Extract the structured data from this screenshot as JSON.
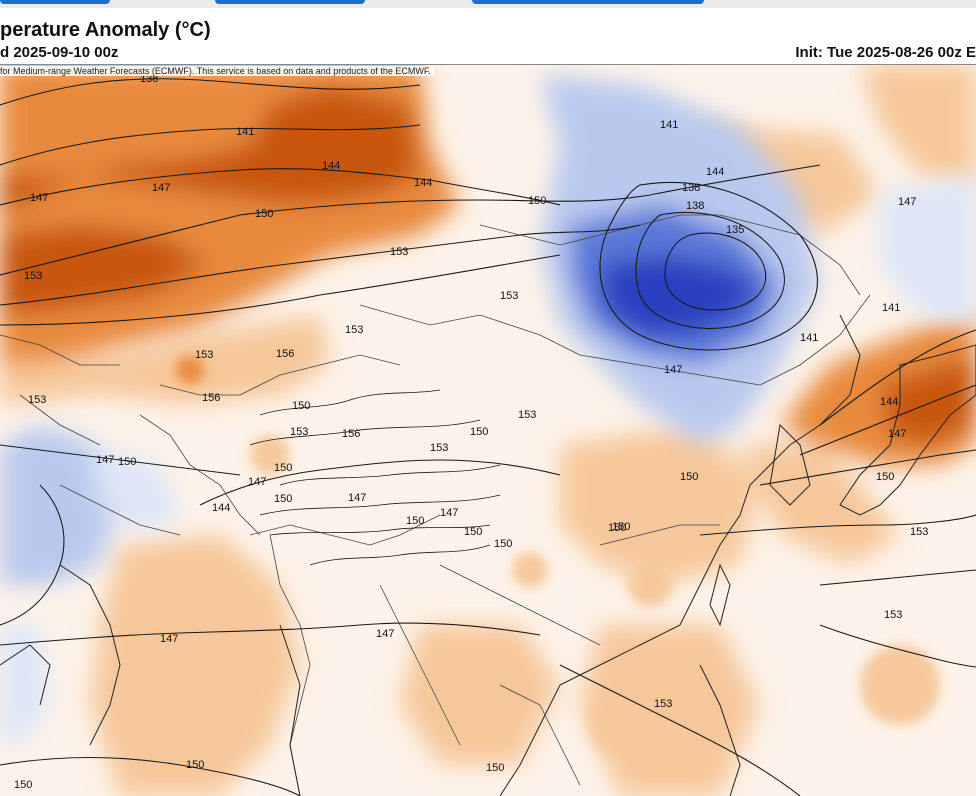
{
  "header": {
    "title": "perature Anomaly (°C)",
    "valid": "d 2025-09-10 00z",
    "init": "Init: Tue 2025-08-26 00z E",
    "credit": "for Medium-range Weather Forecasts (ECMWF). This service is based on data and products of the ECMWF."
  },
  "colors": {
    "strong_warm": "#c8560f",
    "warm": "#e88a3c",
    "light_warm": "#f6c79a",
    "pale_warm": "#fbe3cc",
    "strong_cold": "#2a3fbf",
    "cold": "#5a78d8",
    "light_cold": "#b9c9ee",
    "pale_cold": "#dde6f7",
    "contour": "#1a1a1a",
    "boundary": "#333333"
  },
  "contour_labels": [
    {
      "text": "138"
    },
    {
      "text": "141"
    },
    {
      "text": "144"
    },
    {
      "text": "147"
    },
    {
      "text": "150"
    },
    {
      "text": "153"
    },
    {
      "text": "147"
    },
    {
      "text": "144"
    },
    {
      "text": "141"
    },
    {
      "text": "138"
    },
    {
      "text": "135"
    },
    {
      "text": "150"
    },
    {
      "text": "153"
    },
    {
      "text": "153"
    },
    {
      "text": "153"
    },
    {
      "text": "156"
    },
    {
      "text": "153"
    },
    {
      "text": "153"
    },
    {
      "text": "156"
    },
    {
      "text": "150"
    },
    {
      "text": "153"
    },
    {
      "text": "156"
    },
    {
      "text": "150"
    },
    {
      "text": "153"
    },
    {
      "text": "153"
    },
    {
      "text": "147"
    },
    {
      "text": "150"
    },
    {
      "text": "147"
    },
    {
      "text": "150"
    },
    {
      "text": "150"
    },
    {
      "text": "147"
    },
    {
      "text": "150"
    },
    {
      "text": "147"
    },
    {
      "text": "150"
    },
    {
      "text": "150"
    },
    {
      "text": "144"
    },
    {
      "text": "147"
    },
    {
      "text": "147"
    },
    {
      "text": "150"
    },
    {
      "text": "150"
    },
    {
      "text": "144"
    },
    {
      "text": "138"
    },
    {
      "text": "141"
    },
    {
      "text": "147"
    },
    {
      "text": "141"
    },
    {
      "text": "144"
    },
    {
      "text": "147"
    },
    {
      "text": "150"
    },
    {
      "text": "153"
    },
    {
      "text": "153"
    },
    {
      "text": "150"
    },
    {
      "text": "150"
    },
    {
      "text": "150"
    },
    {
      "text": "153"
    },
    {
      "text": "150"
    },
    {
      "text": "147"
    }
  ]
}
